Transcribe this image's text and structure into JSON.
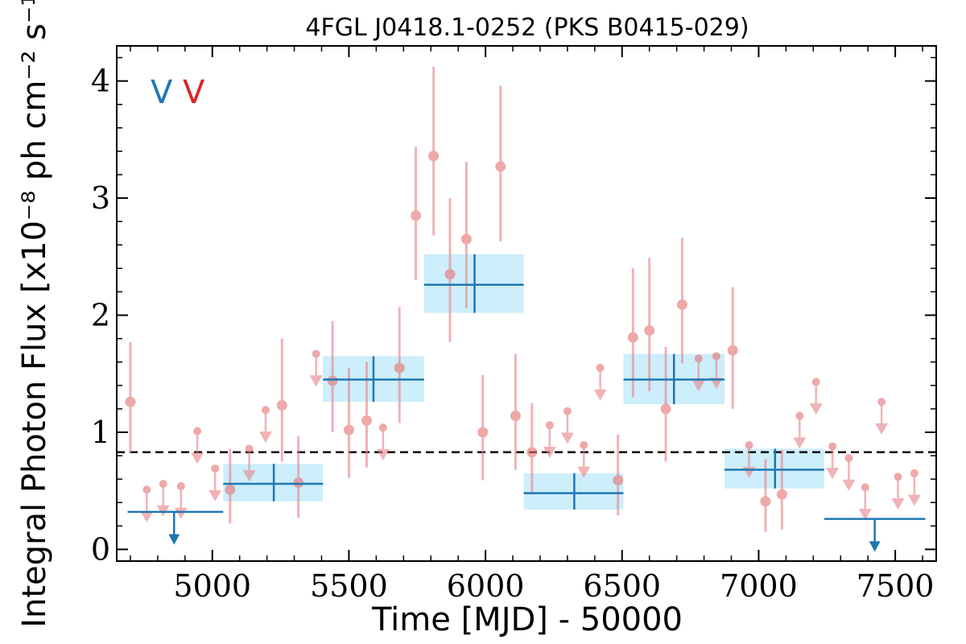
{
  "chart_data": {
    "type": "scatter",
    "title": "4FGL J0418.1-0252 (PKS B0415-029)",
    "xlabel": "Time [MJD] - 50000",
    "ylabel": "Integral Photon Flux [x10⁻⁸ ph cm⁻² s⁻¹]",
    "xlim": [
      4650,
      7650
    ],
    "ylim": [
      -0.1,
      4.3
    ],
    "x_ticks": [
      5000,
      5500,
      6000,
      6500,
      7000,
      7500
    ],
    "x_tick_labels": [
      "5000",
      "5500",
      "6000",
      "6500",
      "7000",
      "7500"
    ],
    "y_ticks": [
      0,
      1,
      2,
      3,
      4
    ],
    "y_tick_labels": [
      "0",
      "1",
      "2",
      "3",
      "4"
    ],
    "mean_flux": 0.83,
    "legend": {
      "labels": [
        "V",
        "V"
      ],
      "colors": [
        "#1f77b4",
        "#d62728"
      ],
      "placement": "top-left"
    },
    "colors": {
      "fine": "#e8868a",
      "fine_marker": "#e57373",
      "coarse": "#1f77b4",
      "band": "#cdeefb",
      "mean_line": "#000000"
    },
    "fine_points": [
      {
        "x": 4700,
        "y": 1.26,
        "lo": 0.82,
        "hi": 1.77
      },
      {
        "x": 5065,
        "y": 0.51,
        "lo": 0.22,
        "hi": 0.86
      },
      {
        "x": 5255,
        "y": 1.23,
        "lo": 0.75,
        "hi": 1.8
      },
      {
        "x": 5315,
        "y": 0.57,
        "lo": 0.27,
        "hi": 0.97
      },
      {
        "x": 5440,
        "y": 1.44,
        "lo": 1.0,
        "hi": 1.95
      },
      {
        "x": 5500,
        "y": 1.02,
        "lo": 0.61,
        "hi": 1.55
      },
      {
        "x": 5565,
        "y": 1.1,
        "lo": 0.7,
        "hi": 1.6
      },
      {
        "x": 5685,
        "y": 1.55,
        "lo": 1.08,
        "hi": 2.07
      },
      {
        "x": 5745,
        "y": 2.85,
        "lo": 2.3,
        "hi": 3.44
      },
      {
        "x": 5810,
        "y": 3.36,
        "lo": 2.68,
        "hi": 4.12
      },
      {
        "x": 5870,
        "y": 2.35,
        "lo": 1.77,
        "hi": 3.0
      },
      {
        "x": 5930,
        "y": 2.65,
        "lo": 2.06,
        "hi": 3.31
      },
      {
        "x": 5990,
        "y": 1.0,
        "lo": 0.59,
        "hi": 1.49
      },
      {
        "x": 6055,
        "y": 3.27,
        "lo": 2.63,
        "hi": 3.96
      },
      {
        "x": 6110,
        "y": 1.14,
        "lo": 0.68,
        "hi": 1.67
      },
      {
        "x": 6170,
        "y": 0.83,
        "lo": 0.47,
        "hi": 1.25
      },
      {
        "x": 6485,
        "y": 0.59,
        "lo": 0.29,
        "hi": 0.98
      },
      {
        "x": 6540,
        "y": 1.81,
        "lo": 1.3,
        "hi": 2.4
      },
      {
        "x": 6600,
        "y": 1.87,
        "lo": 1.35,
        "hi": 2.49
      },
      {
        "x": 6660,
        "y": 1.2,
        "lo": 0.75,
        "hi": 1.73
      },
      {
        "x": 6720,
        "y": 2.09,
        "lo": 1.59,
        "hi": 2.66
      },
      {
        "x": 6905,
        "y": 1.7,
        "lo": 1.2,
        "hi": 2.24
      },
      {
        "x": 7025,
        "y": 0.41,
        "lo": 0.15,
        "hi": 0.77
      },
      {
        "x": 7085,
        "y": 0.47,
        "lo": 0.17,
        "hi": 0.85
      }
    ],
    "fine_upper_limits": [
      {
        "x": 4760,
        "y": 0.51
      },
      {
        "x": 4820,
        "y": 0.56
      },
      {
        "x": 4885,
        "y": 0.54
      },
      {
        "x": 4945,
        "y": 1.01
      },
      {
        "x": 5010,
        "y": 0.69
      },
      {
        "x": 5135,
        "y": 0.86
      },
      {
        "x": 5195,
        "y": 1.19
      },
      {
        "x": 5380,
        "y": 1.67
      },
      {
        "x": 5625,
        "y": 1.04
      },
      {
        "x": 6235,
        "y": 1.06
      },
      {
        "x": 6300,
        "y": 1.18
      },
      {
        "x": 6360,
        "y": 0.89
      },
      {
        "x": 6420,
        "y": 1.55
      },
      {
        "x": 6780,
        "y": 1.63
      },
      {
        "x": 6845,
        "y": 1.65
      },
      {
        "x": 6965,
        "y": 0.89
      },
      {
        "x": 7150,
        "y": 1.14
      },
      {
        "x": 7210,
        "y": 1.43
      },
      {
        "x": 7270,
        "y": 0.88
      },
      {
        "x": 7330,
        "y": 0.78
      },
      {
        "x": 7390,
        "y": 0.53
      },
      {
        "x": 7450,
        "y": 1.26
      },
      {
        "x": 7510,
        "y": 0.62
      },
      {
        "x": 7570,
        "y": 0.65
      }
    ],
    "coarse_points": [
      {
        "x0": 5040,
        "x1": 5405,
        "xc": 5225,
        "y": 0.56,
        "lo": 0.41,
        "hi": 0.73
      },
      {
        "x0": 5405,
        "x1": 5775,
        "xc": 5590,
        "y": 1.45,
        "lo": 1.26,
        "hi": 1.65
      },
      {
        "x0": 5775,
        "x1": 6140,
        "xc": 5960,
        "y": 2.26,
        "lo": 2.02,
        "hi": 2.52
      },
      {
        "x0": 6140,
        "x1": 6505,
        "xc": 6325,
        "y": 0.48,
        "lo": 0.34,
        "hi": 0.65
      },
      {
        "x0": 6505,
        "x1": 6875,
        "xc": 6690,
        "y": 1.45,
        "lo": 1.24,
        "hi": 1.67
      },
      {
        "x0": 6875,
        "x1": 7240,
        "xc": 7060,
        "y": 0.68,
        "lo": 0.52,
        "hi": 0.86
      }
    ],
    "coarse_upper_limits": [
      {
        "x0": 4690,
        "x1": 5040,
        "xc": 4860,
        "y": 0.32
      },
      {
        "x0": 7240,
        "x1": 7610,
        "xc": 7425,
        "y": 0.26
      }
    ]
  }
}
